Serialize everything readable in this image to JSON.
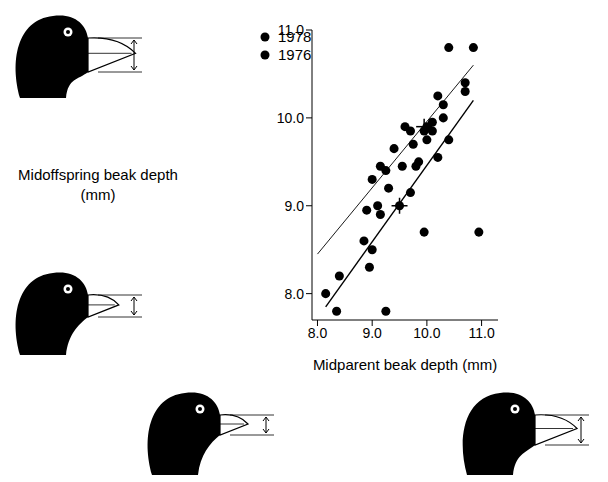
{
  "chart_data": {
    "type": "scatter",
    "x_label": "Midparent beak depth (mm)",
    "y_label": "Midoffspring beak depth (mm)",
    "xlim": [
      7.9,
      11.3
    ],
    "ylim": [
      7.7,
      11.0
    ],
    "xticks": [
      {
        "value": 8,
        "label": "8.0"
      },
      {
        "value": 9,
        "label": "9.0"
      },
      {
        "value": 10,
        "label": "10.0"
      },
      {
        "value": 11,
        "label": "11.0"
      }
    ],
    "yticks": [
      {
        "value": 8,
        "label": "8.0"
      },
      {
        "value": 9,
        "label": "9.0"
      },
      {
        "value": 10,
        "label": "10.0"
      },
      {
        "value": 11,
        "label": "11.0"
      }
    ],
    "legend": "top-left",
    "series": [
      {
        "name": "1978",
        "color": "#000000",
        "marker": "circle",
        "x": [
          8.9,
          9.0,
          9.15,
          9.25,
          9.4,
          9.55,
          9.6,
          9.7,
          9.75,
          9.95,
          10.0,
          10.1,
          10.2,
          10.3,
          10.4,
          10.7,
          10.85
        ],
        "y": [
          8.95,
          9.3,
          9.45,
          9.4,
          9.65,
          9.45,
          9.9,
          9.85,
          9.7,
          9.85,
          9.9,
          9.95,
          10.25,
          10.15,
          10.8,
          10.4,
          10.8
        ],
        "fit": {
          "x": [
            8.0,
            10.85
          ],
          "y": [
            8.45,
            10.6
          ]
        },
        "mean": {
          "x": 9.95,
          "y": 9.9
        }
      },
      {
        "name": "1976",
        "color": "#000000",
        "marker": "circle",
        "x": [
          8.15,
          8.4,
          8.35,
          8.85,
          8.95,
          9.0,
          9.1,
          9.15,
          9.3,
          9.25,
          9.5,
          9.7,
          9.8,
          9.85,
          9.95,
          10.0,
          10.1,
          10.2,
          10.3,
          10.4,
          10.7,
          10.95
        ],
        "y": [
          8.0,
          8.2,
          7.8,
          8.6,
          8.3,
          8.5,
          9.0,
          8.9,
          9.2,
          7.8,
          9.0,
          9.15,
          9.45,
          9.5,
          8.7,
          9.75,
          9.85,
          9.55,
          10.0,
          9.75,
          10.3,
          8.7
        ],
        "fit": {
          "x": [
            8.15,
            10.85
          ],
          "y": [
            7.85,
            10.2
          ]
        },
        "mean": {
          "x": 9.5,
          "y": 9.0
        }
      }
    ]
  }
}
